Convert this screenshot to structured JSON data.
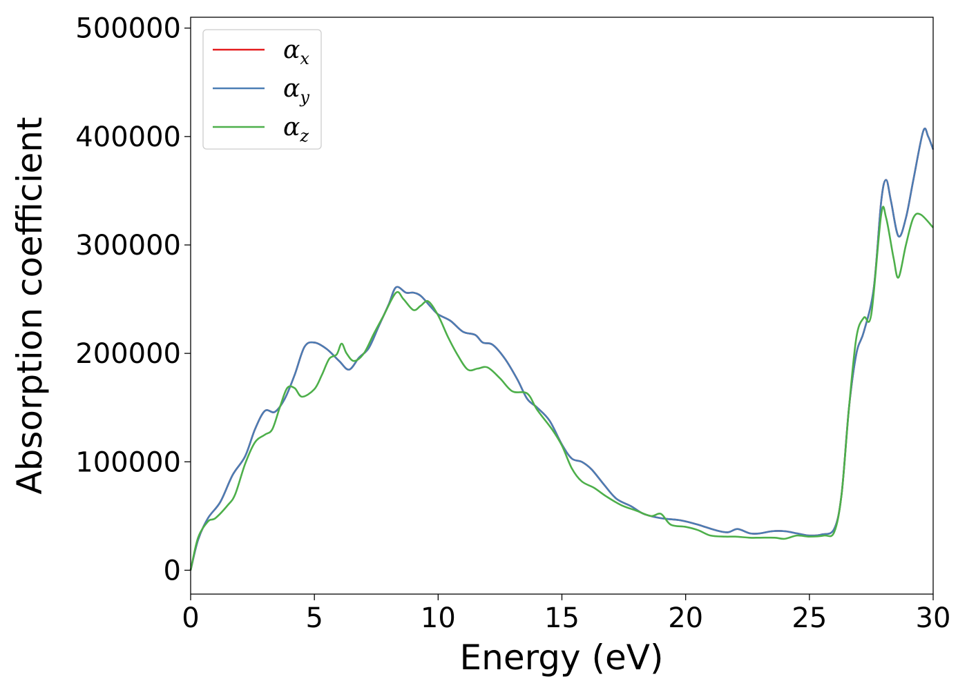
{
  "chart_data": {
    "type": "line",
    "title": "",
    "xlabel": "Energy (eV)",
    "ylabel": "Absorption coefficient",
    "xlim": [
      0,
      30
    ],
    "ylim": [
      -22000,
      510000
    ],
    "x_ticks": [
      0,
      5,
      10,
      15,
      20,
      25,
      30
    ],
    "y_ticks": [
      0,
      100000,
      200000,
      300000,
      400000,
      500000
    ],
    "grid": false,
    "legend_position": "top-left",
    "series": [
      {
        "name": "αx",
        "symbol": "α",
        "subscript": "x",
        "color": "#e41a1c",
        "points": [
          [
            0,
            0
          ],
          [
            0.3,
            28000
          ],
          [
            0.7,
            48000
          ],
          [
            1.2,
            63000
          ],
          [
            1.7,
            88000
          ],
          [
            2.2,
            105000
          ],
          [
            2.6,
            130000
          ],
          [
            3.0,
            147000
          ],
          [
            3.4,
            146000
          ],
          [
            3.8,
            158000
          ],
          [
            4.2,
            180000
          ],
          [
            4.6,
            206000
          ],
          [
            5.0,
            210000
          ],
          [
            5.5,
            204000
          ],
          [
            6.0,
            193000
          ],
          [
            6.4,
            185000
          ],
          [
            6.8,
            196000
          ],
          [
            7.2,
            205000
          ],
          [
            7.6,
            225000
          ],
          [
            8.0,
            245000
          ],
          [
            8.3,
            261000
          ],
          [
            8.7,
            256000
          ],
          [
            9.0,
            256000
          ],
          [
            9.3,
            253000
          ],
          [
            9.7,
            243000
          ],
          [
            10.0,
            236000
          ],
          [
            10.5,
            230000
          ],
          [
            11.0,
            220000
          ],
          [
            11.5,
            217000
          ],
          [
            11.8,
            210000
          ],
          [
            12.2,
            208000
          ],
          [
            12.7,
            195000
          ],
          [
            13.2,
            176000
          ],
          [
            13.6,
            158000
          ],
          [
            14.0,
            150000
          ],
          [
            14.5,
            138000
          ],
          [
            15.0,
            116000
          ],
          [
            15.4,
            103000
          ],
          [
            15.8,
            100000
          ],
          [
            16.2,
            93000
          ],
          [
            16.7,
            79000
          ],
          [
            17.2,
            66000
          ],
          [
            17.8,
            59000
          ],
          [
            18.3,
            52000
          ],
          [
            19.0,
            48000
          ],
          [
            19.8,
            46000
          ],
          [
            20.5,
            42000
          ],
          [
            21.2,
            37000
          ],
          [
            21.7,
            35000
          ],
          [
            22.1,
            38000
          ],
          [
            22.6,
            34000
          ],
          [
            23.0,
            34000
          ],
          [
            23.5,
            36000
          ],
          [
            24.0,
            36000
          ],
          [
            24.5,
            34000
          ],
          [
            25.0,
            32000
          ],
          [
            25.5,
            33000
          ],
          [
            26.0,
            38000
          ],
          [
            26.3,
            70000
          ],
          [
            26.6,
            150000
          ],
          [
            26.9,
            200000
          ],
          [
            27.2,
            220000
          ],
          [
            27.6,
            260000
          ],
          [
            27.9,
            340000
          ],
          [
            28.1,
            360000
          ],
          [
            28.3,
            340000
          ],
          [
            28.6,
            308000
          ],
          [
            28.9,
            325000
          ],
          [
            29.2,
            360000
          ],
          [
            29.6,
            405000
          ],
          [
            29.8,
            400000
          ],
          [
            30.0,
            388000
          ]
        ]
      },
      {
        "name": "αy",
        "symbol": "α",
        "subscript": "y",
        "color": "#4a7db4",
        "points": [
          [
            0,
            0
          ],
          [
            0.3,
            28000
          ],
          [
            0.7,
            48000
          ],
          [
            1.2,
            63000
          ],
          [
            1.7,
            88000
          ],
          [
            2.2,
            105000
          ],
          [
            2.6,
            130000
          ],
          [
            3.0,
            147000
          ],
          [
            3.4,
            146000
          ],
          [
            3.8,
            158000
          ],
          [
            4.2,
            180000
          ],
          [
            4.6,
            206000
          ],
          [
            5.0,
            210000
          ],
          [
            5.5,
            204000
          ],
          [
            6.0,
            193000
          ],
          [
            6.4,
            185000
          ],
          [
            6.8,
            196000
          ],
          [
            7.2,
            205000
          ],
          [
            7.6,
            225000
          ],
          [
            8.0,
            245000
          ],
          [
            8.3,
            261000
          ],
          [
            8.7,
            256000
          ],
          [
            9.0,
            256000
          ],
          [
            9.3,
            253000
          ],
          [
            9.7,
            243000
          ],
          [
            10.0,
            236000
          ],
          [
            10.5,
            230000
          ],
          [
            11.0,
            220000
          ],
          [
            11.5,
            217000
          ],
          [
            11.8,
            210000
          ],
          [
            12.2,
            208000
          ],
          [
            12.7,
            195000
          ],
          [
            13.2,
            176000
          ],
          [
            13.6,
            158000
          ],
          [
            14.0,
            150000
          ],
          [
            14.5,
            138000
          ],
          [
            15.0,
            116000
          ],
          [
            15.4,
            103000
          ],
          [
            15.8,
            100000
          ],
          [
            16.2,
            93000
          ],
          [
            16.7,
            79000
          ],
          [
            17.2,
            66000
          ],
          [
            17.8,
            59000
          ],
          [
            18.3,
            52000
          ],
          [
            19.0,
            48000
          ],
          [
            19.8,
            46000
          ],
          [
            20.5,
            42000
          ],
          [
            21.2,
            37000
          ],
          [
            21.7,
            35000
          ],
          [
            22.1,
            38000
          ],
          [
            22.6,
            34000
          ],
          [
            23.0,
            34000
          ],
          [
            23.5,
            36000
          ],
          [
            24.0,
            36000
          ],
          [
            24.5,
            34000
          ],
          [
            25.0,
            32000
          ],
          [
            25.5,
            33000
          ],
          [
            26.0,
            38000
          ],
          [
            26.3,
            70000
          ],
          [
            26.6,
            150000
          ],
          [
            26.9,
            200000
          ],
          [
            27.2,
            220000
          ],
          [
            27.6,
            260000
          ],
          [
            27.9,
            340000
          ],
          [
            28.1,
            360000
          ],
          [
            28.3,
            340000
          ],
          [
            28.6,
            308000
          ],
          [
            28.9,
            325000
          ],
          [
            29.2,
            360000
          ],
          [
            29.6,
            405000
          ],
          [
            29.8,
            400000
          ],
          [
            30.0,
            388000
          ]
        ]
      },
      {
        "name": "αz",
        "symbol": "α",
        "subscript": "z",
        "color": "#4daf4a",
        "points": [
          [
            0,
            0
          ],
          [
            0.3,
            30000
          ],
          [
            0.7,
            45000
          ],
          [
            1.0,
            48000
          ],
          [
            1.5,
            60000
          ],
          [
            1.8,
            70000
          ],
          [
            2.2,
            98000
          ],
          [
            2.6,
            118000
          ],
          [
            3.0,
            125000
          ],
          [
            3.3,
            130000
          ],
          [
            3.6,
            150000
          ],
          [
            3.9,
            168000
          ],
          [
            4.2,
            168000
          ],
          [
            4.5,
            160000
          ],
          [
            5.0,
            167000
          ],
          [
            5.3,
            180000
          ],
          [
            5.6,
            195000
          ],
          [
            5.9,
            199000
          ],
          [
            6.1,
            209000
          ],
          [
            6.3,
            200000
          ],
          [
            6.6,
            193000
          ],
          [
            7.0,
            200000
          ],
          [
            7.4,
            218000
          ],
          [
            7.8,
            235000
          ],
          [
            8.3,
            256000
          ],
          [
            8.6,
            250000
          ],
          [
            9.0,
            240000
          ],
          [
            9.3,
            244000
          ],
          [
            9.6,
            248000
          ],
          [
            10.0,
            235000
          ],
          [
            10.4,
            215000
          ],
          [
            10.8,
            198000
          ],
          [
            11.2,
            185000
          ],
          [
            11.6,
            186000
          ],
          [
            12.0,
            187000
          ],
          [
            12.5,
            177000
          ],
          [
            13.0,
            165000
          ],
          [
            13.6,
            163000
          ],
          [
            14.0,
            148000
          ],
          [
            14.6,
            130000
          ],
          [
            15.0,
            115000
          ],
          [
            15.4,
            94000
          ],
          [
            15.8,
            82000
          ],
          [
            16.3,
            76000
          ],
          [
            16.8,
            68000
          ],
          [
            17.4,
            60000
          ],
          [
            18.0,
            55000
          ],
          [
            18.6,
            50000
          ],
          [
            19.0,
            52000
          ],
          [
            19.4,
            42000
          ],
          [
            20.0,
            40000
          ],
          [
            20.5,
            37000
          ],
          [
            21.0,
            32000
          ],
          [
            21.6,
            31000
          ],
          [
            22.0,
            31000
          ],
          [
            22.6,
            30000
          ],
          [
            23.0,
            30000
          ],
          [
            23.6,
            30000
          ],
          [
            24.0,
            29000
          ],
          [
            24.5,
            32000
          ],
          [
            25.0,
            31000
          ],
          [
            25.6,
            32000
          ],
          [
            26.0,
            35000
          ],
          [
            26.3,
            70000
          ],
          [
            26.6,
            150000
          ],
          [
            26.9,
            215000
          ],
          [
            27.2,
            233000
          ],
          [
            27.5,
            236000
          ],
          [
            27.9,
            328000
          ],
          [
            28.1,
            325000
          ],
          [
            28.4,
            288000
          ],
          [
            28.6,
            270000
          ],
          [
            28.9,
            300000
          ],
          [
            29.2,
            325000
          ],
          [
            29.5,
            328000
          ],
          [
            30.0,
            316000
          ]
        ]
      }
    ]
  }
}
